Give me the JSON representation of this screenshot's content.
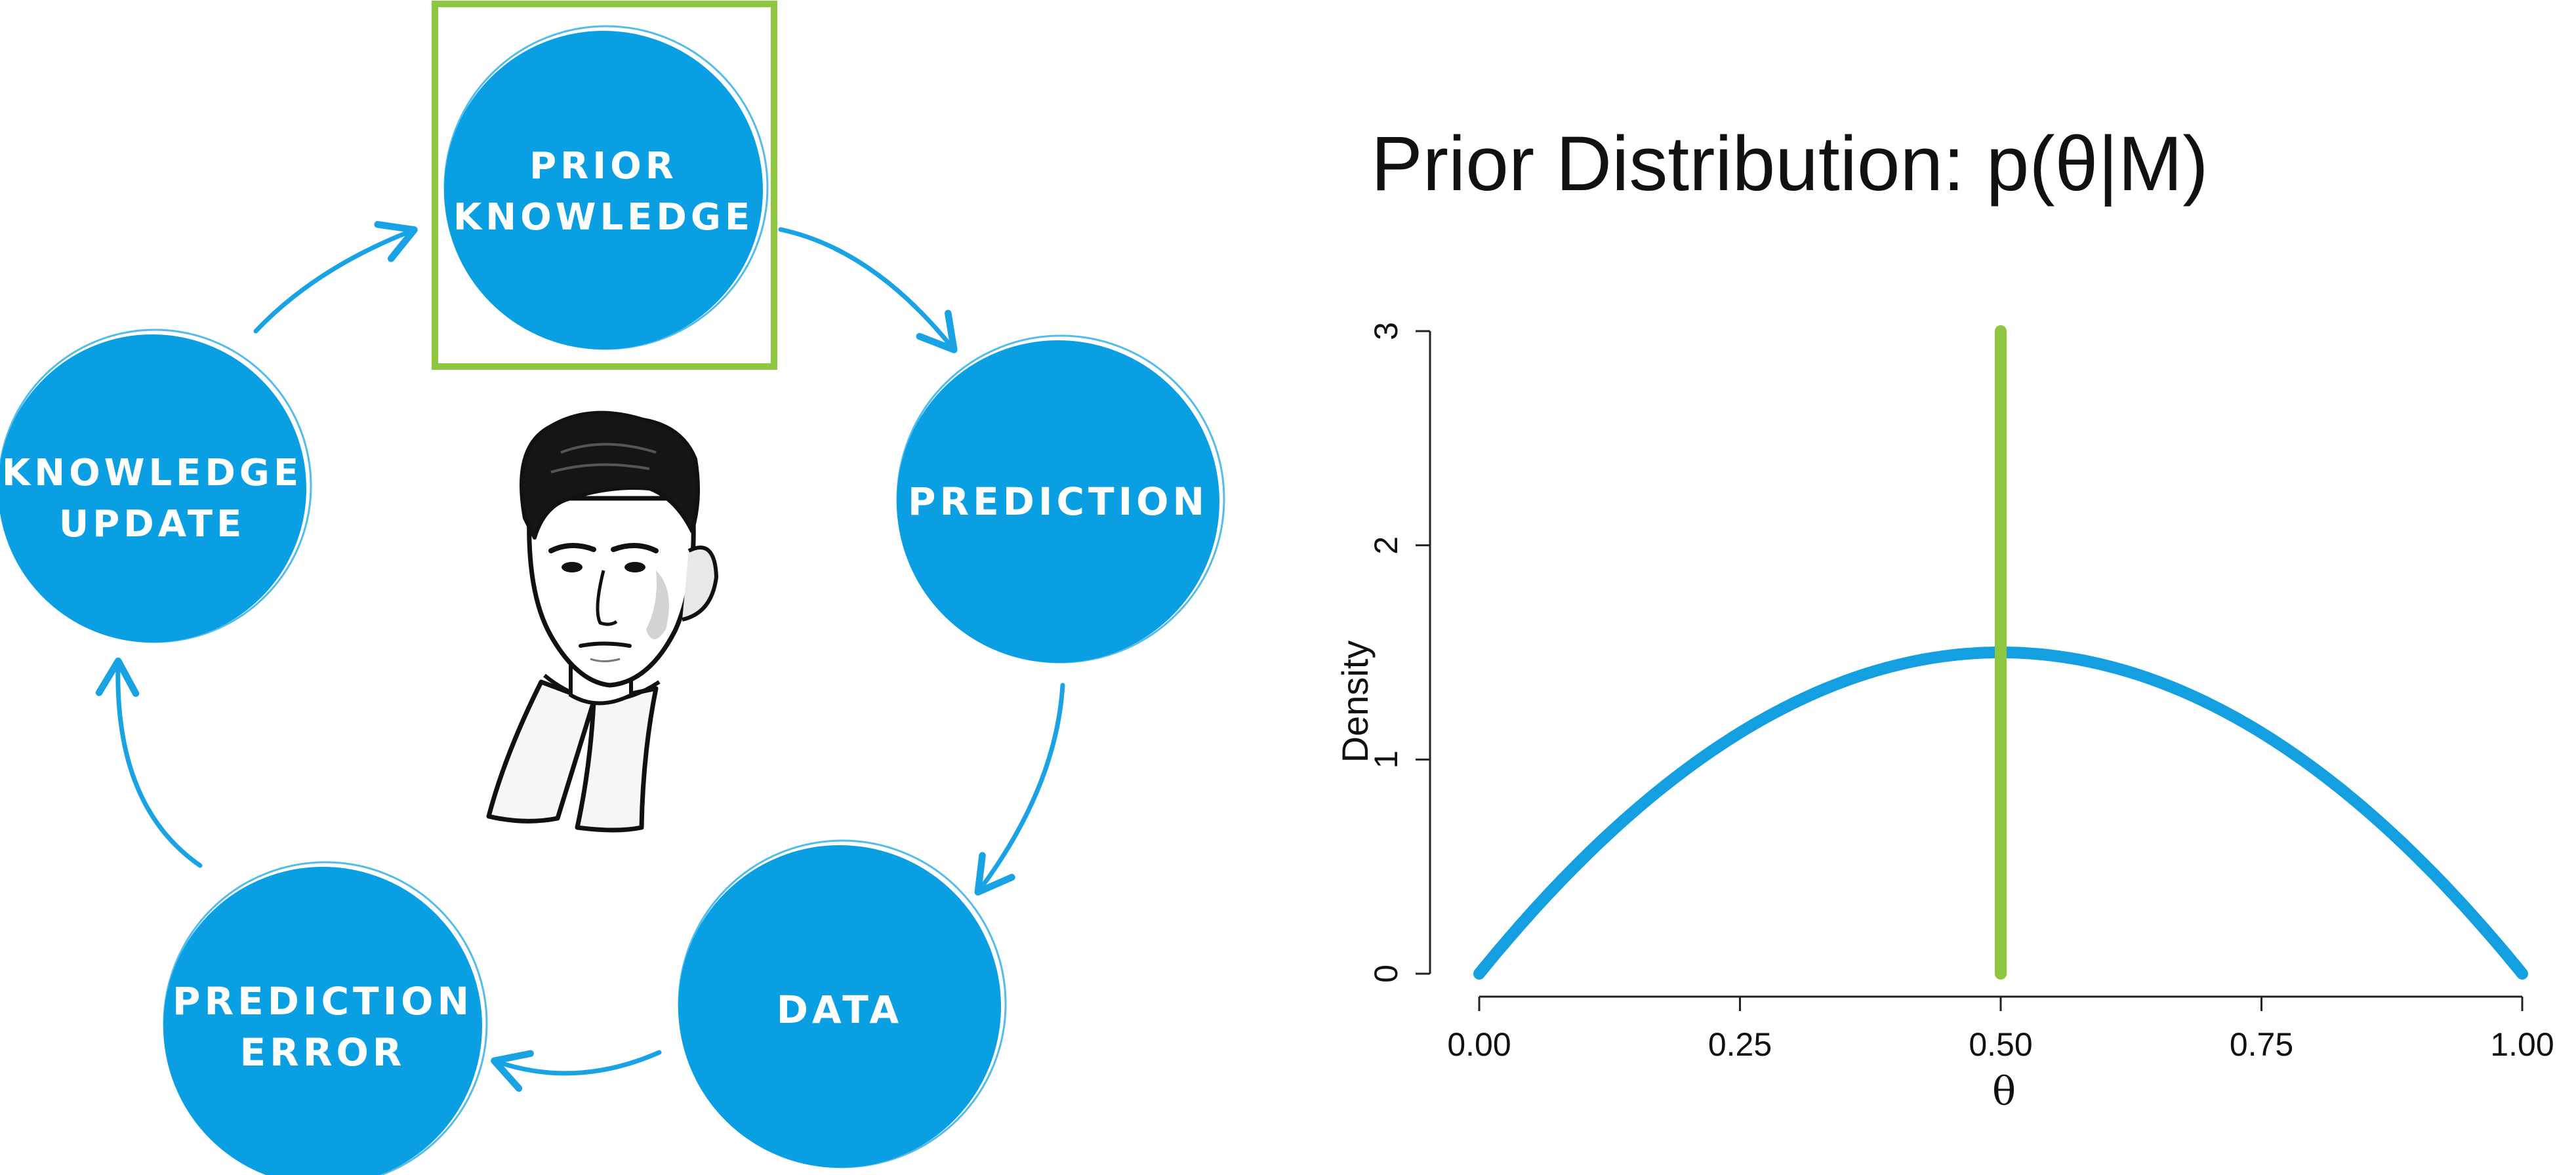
{
  "colors": {
    "node_fill": "#0a9fe3",
    "arrow": "#1aa3e4",
    "highlight": "#8dc63f",
    "curve": "#139fe0",
    "axis": "#222222"
  },
  "cycle": {
    "nodes": [
      {
        "id": "prior",
        "lines": [
          "PRIOR",
          "KNOWLEDGE"
        ],
        "highlighted": true
      },
      {
        "id": "prediction",
        "lines": [
          "PREDICTION"
        ]
      },
      {
        "id": "data",
        "lines": [
          "DATA"
        ]
      },
      {
        "id": "error",
        "lines": [
          "PREDICTION",
          "ERROR"
        ]
      },
      {
        "id": "update",
        "lines": [
          "KNOWLEDGE",
          "UPDATE"
        ]
      }
    ],
    "portrait_icon": "scientist-portrait"
  },
  "chart_data": {
    "type": "line",
    "title": "Prior Distribution: p(θ|M)",
    "xlabel": "θ",
    "ylabel": "Density",
    "xlim": [
      0,
      1
    ],
    "ylim": [
      0,
      3
    ],
    "xticks": [
      "0.00",
      "0.25",
      "0.50",
      "0.75",
      "1.00"
    ],
    "xtick_values": [
      0,
      0.25,
      0.5,
      0.75,
      1
    ],
    "yticks": [
      "0",
      "1",
      "2",
      "3"
    ],
    "ytick_values": [
      0,
      1,
      2,
      3
    ],
    "grid": false,
    "series": [
      {
        "kind": "curve",
        "formula": "6*x*(1-x)",
        "color": "#139fe0",
        "x": [
          0,
          0.1,
          0.2,
          0.3,
          0.4,
          0.5,
          0.6,
          0.7,
          0.8,
          0.9,
          1.0
        ],
        "y": [
          0,
          0.54,
          0.96,
          1.26,
          1.44,
          1.5,
          1.44,
          1.26,
          0.96,
          0.54,
          0
        ]
      },
      {
        "kind": "spike",
        "x": 0.5,
        "y": [
          0,
          3
        ],
        "color": "#8dc63f"
      }
    ]
  }
}
